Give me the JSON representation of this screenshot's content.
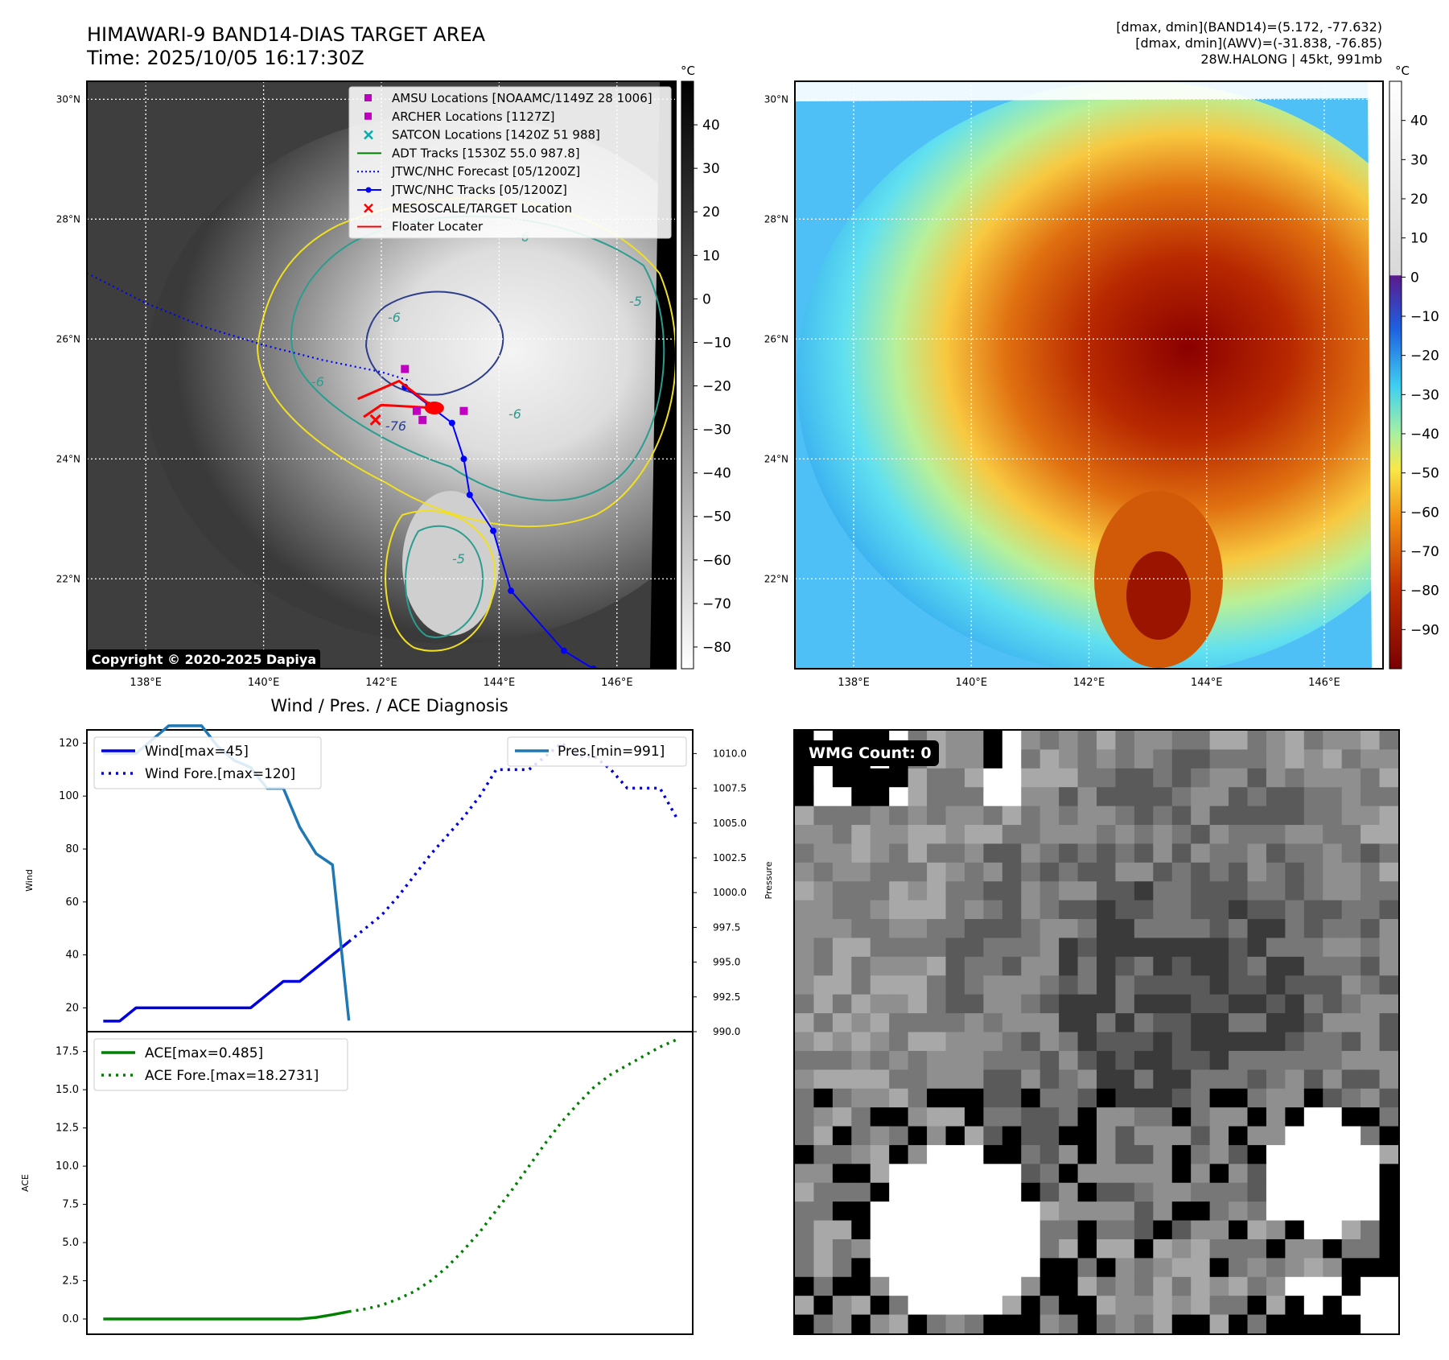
{
  "header": {
    "title_line1": "HIMAWARI-9 BAND14-DIAS TARGET AREA",
    "title_line2": "Time: 2025/10/05 16:17:30Z",
    "info_line1": "[dmax, dmin](BAND14)=(5.172, -77.632)",
    "info_line2": "[dmax, dmin](AWV)=(-31.838, -76.85)",
    "info_line3": "28W.HALONG | 45kt, 991mb"
  },
  "map_axes": {
    "lon_labels": [
      "138°E",
      "140°E",
      "142°E",
      "144°E",
      "146°E"
    ],
    "lat_labels": [
      "30°N",
      "28°N",
      "26°N",
      "24°N",
      "22°N"
    ],
    "lon_values": [
      138,
      140,
      142,
      144,
      146
    ],
    "lat_values": [
      30,
      28,
      26,
      24,
      22
    ],
    "lon_range": [
      137,
      147
    ],
    "lat_range": [
      20.5,
      30.3
    ]
  },
  "colorbar_gray": {
    "unit": "°C",
    "ticks": [
      "40",
      "30",
      "20",
      "10",
      "0",
      "−10",
      "−20",
      "−30",
      "−40",
      "−50",
      "−60",
      "−70",
      "−80"
    ],
    "tick_values": [
      40,
      30,
      20,
      10,
      0,
      -10,
      -20,
      -30,
      -40,
      -50,
      -60,
      -70,
      -80
    ],
    "range": [
      -85,
      50
    ]
  },
  "colorbar_color": {
    "unit": "°C",
    "ticks": [
      "40",
      "30",
      "20",
      "10",
      "0",
      "−10",
      "−20",
      "−30",
      "−40",
      "−50",
      "−60",
      "−70",
      "−80",
      "−90"
    ],
    "tick_values": [
      40,
      30,
      20,
      10,
      0,
      -10,
      -20,
      -30,
      -40,
      -50,
      -60,
      -70,
      -80,
      -90
    ],
    "range": [
      -100,
      50
    ]
  },
  "legend_map": {
    "items": [
      {
        "label": "AMSU Locations [NOAAMC/1149Z 28 1006]",
        "marker": "square",
        "color": "#c000c0"
      },
      {
        "label": "ARCHER Locations [1127Z]",
        "marker": "square",
        "color": "#c000c0"
      },
      {
        "label": "SATCON Locations [1420Z 51 988]",
        "marker": "x",
        "color": "#00b0b0"
      },
      {
        "label": "ADT Tracks [1530Z 55.0 987.8]",
        "marker": "line",
        "color": "#008000"
      },
      {
        "label": "JTWC/NHC Forecast [05/1200Z]",
        "marker": "dotted",
        "color": "#0000ff"
      },
      {
        "label": "JTWC/NHC Tracks [05/1200Z]",
        "marker": "line-dot",
        "color": "#0000ff"
      },
      {
        "label": "MESOSCALE/TARGET Location",
        "marker": "x",
        "color": "#ff0000"
      },
      {
        "label": "Floater Locater",
        "marker": "line",
        "color": "#ff0000"
      }
    ]
  },
  "contour_labels": [
    "-76",
    "-6",
    "-6",
    "-6",
    "-5",
    "-5",
    "-6"
  ],
  "copyright": "Copyright © 2020-2025 Dapiya",
  "wmg": {
    "badge": "WMG Count: 0"
  },
  "colors": {
    "wind": "#0000e0",
    "pressure": "#1f77b4",
    "ace": "#008000",
    "track": "#0000ff",
    "target": "#ff0000"
  },
  "chart_data": [
    {
      "type": "line",
      "title": "Wind / Pres. / ACE Diagnosis",
      "ylabel": "Wind",
      "ylabel_right": "Pressure",
      "ylim": [
        11,
        125
      ],
      "ylim_right": [
        990,
        1011.7
      ],
      "yticks": [
        20,
        40,
        60,
        80,
        100,
        120
      ],
      "yticks_right": [
        990.0,
        992.5,
        995.0,
        997.5,
        1000.0,
        1002.5,
        1005.0,
        1007.5,
        1010.0
      ],
      "yticks_right_labels": [
        "990.0",
        "992.5",
        "995.0",
        "997.5",
        "1000.0",
        "1002.5",
        "1005.0",
        "1007.5",
        "1010.0"
      ],
      "x_range": [
        -1,
        36
      ],
      "series": [
        {
          "name": "Wind[max=45]",
          "style": "solid",
          "axis": "left",
          "x": [
            0,
            1,
            2,
            3,
            4,
            5,
            6,
            7,
            8,
            9,
            10,
            11,
            12,
            13,
            14,
            15
          ],
          "y": [
            15,
            15,
            20,
            20,
            20,
            20,
            20,
            20,
            20,
            20,
            25,
            30,
            30,
            35,
            40,
            45
          ]
        },
        {
          "name": "Wind Fore.[max=120]",
          "style": "dotted",
          "axis": "left",
          "x": [
            15,
            16,
            17,
            18,
            19,
            20,
            21,
            22,
            23,
            24,
            25,
            26,
            27,
            28,
            29,
            30,
            31,
            32,
            33,
            34,
            35
          ],
          "y": [
            45,
            50,
            55,
            62,
            70,
            78,
            85,
            92,
            100,
            110,
            110,
            110,
            115,
            120,
            115,
            115,
            110,
            103,
            103,
            103,
            92
          ]
        },
        {
          "name": "Pres.[min=991]",
          "style": "solid",
          "axis": "right",
          "x": [
            0,
            1,
            2,
            3,
            4,
            5,
            6,
            7,
            8,
            9,
            10,
            11,
            12,
            13,
            14,
            15
          ],
          "y": [
            1010,
            1010,
            1010,
            1011,
            1012,
            1012,
            1012,
            1010.5,
            1009.5,
            1009,
            1007.5,
            1007.5,
            1004.7,
            1002.8,
            1002,
            990.8
          ]
        }
      ],
      "legend_left": [
        "Wind[max=45]",
        "Wind Fore.[max=120]"
      ],
      "legend_right": [
        "Pres.[min=991]"
      ]
    },
    {
      "type": "line",
      "ylabel": "ACE",
      "ylim": [
        -1,
        18.8
      ],
      "yticks": [
        0.0,
        2.5,
        5.0,
        7.5,
        10.0,
        12.5,
        15.0,
        17.5
      ],
      "yticks_labels": [
        "0.0",
        "2.5",
        "5.0",
        "7.5",
        "10.0",
        "12.5",
        "15.0",
        "17.5"
      ],
      "x_range": [
        -1,
        36
      ],
      "series": [
        {
          "name": "ACE[max=0.485]",
          "style": "solid",
          "x": [
            0,
            2,
            4,
            6,
            8,
            10,
            12,
            13,
            14,
            15
          ],
          "y": [
            0,
            0,
            0,
            0,
            0,
            0,
            0,
            0.1,
            0.28,
            0.485
          ]
        },
        {
          "name": "ACE Fore.[max=18.2731]",
          "style": "dotted",
          "x": [
            15,
            16,
            17,
            18,
            19,
            20,
            21,
            22,
            23,
            24,
            25,
            26,
            27,
            28,
            29,
            30,
            31,
            32,
            33,
            34,
            35
          ],
          "y": [
            0.485,
            0.65,
            0.9,
            1.3,
            1.8,
            2.5,
            3.4,
            4.5,
            5.7,
            7.1,
            8.5,
            10,
            11.5,
            12.9,
            14.1,
            15.2,
            16,
            16.6,
            17.2,
            17.8,
            18.27
          ]
        }
      ],
      "legend": [
        "ACE[max=0.485]",
        "ACE Fore.[max=18.2731]"
      ]
    }
  ]
}
